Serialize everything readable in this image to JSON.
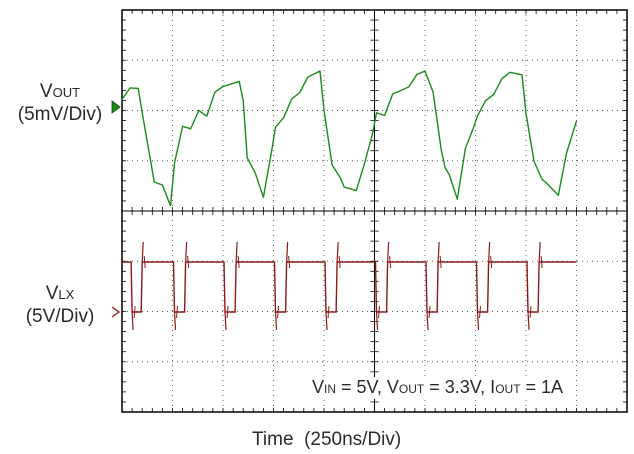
{
  "chart_data": {
    "type": "line",
    "title": "",
    "xlabel": "Time  (250ns/Div)",
    "ylabel": "",
    "x_unit": "ns",
    "x_per_div": 250,
    "x_divisions": 10,
    "grid": true,
    "channels": [
      {
        "label": "VOUT",
        "label_main": "V",
        "label_sub": "OUT",
        "scale": "(5mV/Div)",
        "color": "#1a8a1a",
        "marker": "green-arrow",
        "x": [
          0,
          40,
          80,
          100,
          160,
          200,
          240,
          260,
          300,
          340,
          380,
          420,
          460,
          500,
          540,
          580,
          600,
          620,
          660,
          700,
          740,
          760,
          800,
          840,
          880,
          920,
          980,
          1000,
          1040,
          1080,
          1100,
          1160,
          1200,
          1240,
          1260,
          1300,
          1340,
          1380,
          1420,
          1460,
          1500,
          1540,
          1580,
          1600,
          1620,
          1660,
          1700,
          1740,
          1760,
          1800,
          1840,
          1880,
          1920,
          1980,
          2000,
          2040,
          2080,
          2100,
          2160,
          2200,
          2250
        ],
        "y": [
          1.2,
          1.6,
          1.6,
          0.8,
          -1.5,
          -1.6,
          -2.3,
          -0.9,
          0.3,
          0.2,
          0.8,
          0.6,
          1.4,
          1.6,
          1.7,
          1.8,
          1.2,
          -0.7,
          -1.2,
          -2.0,
          -0.5,
          0.3,
          0.6,
          1.2,
          1.4,
          1.9,
          2.1,
          0.8,
          -1.0,
          -1.4,
          -1.7,
          -1.8,
          -0.9,
          0.1,
          0.8,
          0.7,
          1.4,
          1.5,
          1.6,
          2.0,
          2.1,
          1.4,
          -0.5,
          -1.1,
          -1.3,
          -2.1,
          -0.4,
          0.3,
          0.7,
          1.2,
          1.4,
          1.9,
          2.1,
          2.0,
          0.7,
          -0.9,
          -1.5,
          -1.6,
          -2.0,
          -0.6,
          0.5
        ]
      },
      {
        "label": "VLX",
        "label_main": "V",
        "label_sub": "LX",
        "scale": "(5V/Div)",
        "color": "#8b1a1a",
        "marker": "red-chevron",
        "high_v": 5,
        "low_v": 0,
        "x": [
          0,
          45,
          50,
          95,
          100,
          120,
          255,
          260,
          310,
          315,
          380,
          505,
          510,
          560,
          565,
          630,
          755,
          760,
          810,
          815,
          880,
          1005,
          1010,
          1060,
          1065,
          1130,
          1255,
          1260,
          1310,
          1315,
          1380,
          1505,
          1510,
          1560,
          1565,
          1630,
          1755,
          1760,
          1810,
          1815,
          1880,
          2005,
          2010,
          2060,
          2065,
          2250
        ],
        "y": [
          5,
          5,
          0,
          0,
          5,
          5,
          5,
          0,
          0,
          5,
          5,
          5,
          0,
          0,
          5,
          5,
          5,
          0,
          0,
          5,
          5,
          5,
          0,
          0,
          5,
          5,
          5,
          0,
          0,
          5,
          5,
          5,
          0,
          0,
          5,
          5,
          5,
          0,
          0,
          5,
          5,
          5,
          0,
          0,
          5,
          5
        ]
      }
    ],
    "conditions": {
      "vin_main": "V",
      "vin_sub": "IN",
      "vin_val": " = 5V, ",
      "vout_main": "V",
      "vout_sub": "OUT",
      "vout_val": " = 3.3V, ",
      "iout_main": "I",
      "iout_sub": "OUT",
      "iout_val": " = 1A"
    }
  }
}
